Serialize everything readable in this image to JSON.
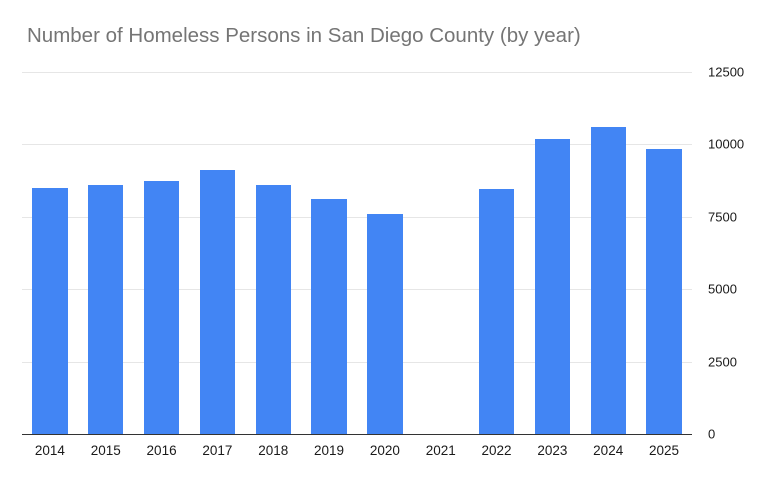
{
  "colors": {
    "bar": "#4285f4",
    "title": "#757575",
    "grid": "#e6e6e6",
    "axis": "#333333",
    "tick_label": "#1a1a1a",
    "background": "#ffffff"
  },
  "chart_data": {
    "type": "bar",
    "title": "Number of Homeless Persons in San Diego County (by year)",
    "categories": [
      "2014",
      "2015",
      "2016",
      "2017",
      "2018",
      "2019",
      "2020",
      "2021",
      "2022",
      "2023",
      "2024",
      "2025"
    ],
    "values": [
      8500,
      8600,
      8750,
      9100,
      8600,
      8100,
      7600,
      0,
      8450,
      10200,
      10600,
      9850
    ],
    "xlabel": "",
    "ylabel": "",
    "ylim": [
      0,
      12500
    ],
    "yticks": [
      0,
      2500,
      5000,
      7500,
      10000,
      12500
    ],
    "y_axis_position": "right",
    "grid": true,
    "legend": "none"
  }
}
